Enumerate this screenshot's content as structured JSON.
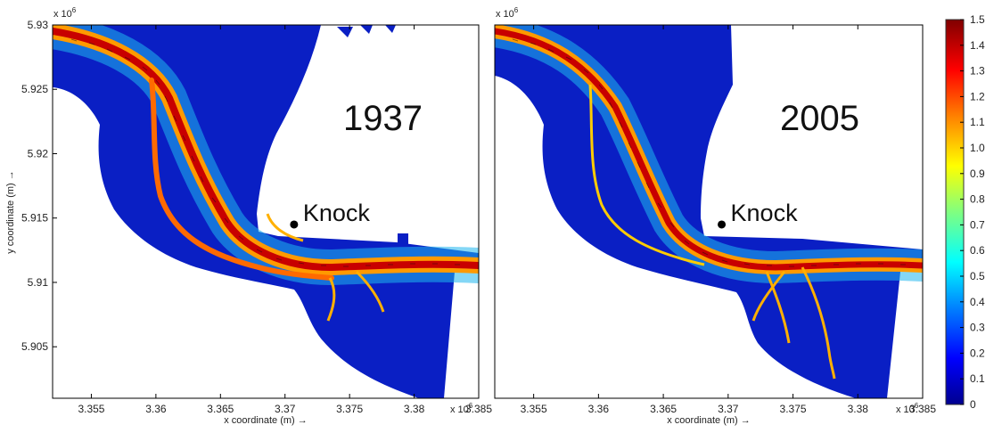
{
  "chart_data": [
    {
      "type": "heatmap",
      "title": "1937",
      "xlabel": "x coordinate (m) →",
      "ylabel": "y coordinate (m) →",
      "x_scale_label": "x 10",
      "x_scale_exp": "6",
      "y_scale_label": "x 10",
      "y_scale_exp": "6",
      "xlim": [
        3.352,
        3.385
      ],
      "ylim": [
        5.901,
        5.93
      ],
      "x_ticks": [
        3.355,
        3.36,
        3.365,
        3.37,
        3.375,
        3.38,
        3.385
      ],
      "x_tick_labels": [
        "3.355",
        "3.36",
        "3.365",
        "3.37",
        "3.375",
        "3.38",
        "3.385"
      ],
      "y_ticks": [
        5.905,
        5.91,
        5.915,
        5.92,
        5.925,
        5.93
      ],
      "y_tick_labels": [
        "5.905",
        "5.91",
        "5.915",
        "5.92",
        "5.925",
        "5.93"
      ],
      "annotation": {
        "text": "Knock",
        "x": 3.3707,
        "y": 5.9145
      },
      "channel": [
        [
          3.352,
          5.9296
        ],
        [
          3.357,
          5.9286
        ],
        [
          3.3615,
          5.9258
        ],
        [
          3.364,
          5.9222
        ],
        [
          3.3655,
          5.9185
        ],
        [
          3.3675,
          5.9148
        ],
        [
          3.371,
          5.912
        ],
        [
          3.376,
          5.9112
        ],
        [
          3.385,
          5.9116
        ]
      ]
    },
    {
      "type": "heatmap",
      "title": "2005",
      "xlabel": "x coordinate (m) →",
      "x_scale_label": "x 10",
      "x_scale_exp": "6",
      "y_scale_label": "x 10",
      "y_scale_exp": "6",
      "xlim": [
        3.352,
        3.385
      ],
      "ylim": [
        5.901,
        5.93
      ],
      "x_ticks": [
        3.355,
        3.36,
        3.365,
        3.37,
        3.375,
        3.38,
        3.385
      ],
      "x_tick_labels": [
        "3.355",
        "3.36",
        "3.365",
        "3.37",
        "3.375",
        "3.38",
        "3.385"
      ],
      "annotation": {
        "text": "Knock",
        "x": 3.3695,
        "y": 5.9145
      },
      "channel": [
        [
          3.352,
          5.9296
        ],
        [
          3.357,
          5.9286
        ],
        [
          3.3615,
          5.9258
        ],
        [
          3.364,
          5.9222
        ],
        [
          3.3658,
          5.918
        ],
        [
          3.367,
          5.9142
        ],
        [
          3.3705,
          5.9118
        ],
        [
          3.376,
          5.9112
        ],
        [
          3.385,
          5.9114
        ]
      ]
    }
  ],
  "colorbar": {
    "min": 0,
    "max": 1.5,
    "ticks": [
      1.5,
      1.4,
      1.3,
      1.2,
      1.1,
      1.0,
      0.9,
      0.8,
      0.7,
      0.6,
      0.5,
      0.4,
      0.3,
      0.2,
      0.1,
      0
    ],
    "tick_labels": [
      "1.5",
      "1.4",
      "1.3",
      "1.2",
      "1.1",
      "1.0",
      "0.9",
      "0.8",
      "0.7",
      "0.6",
      "0.5",
      "0.4",
      "0.3",
      "0.2",
      "0.1",
      "0"
    ],
    "colors": [
      "#00008f",
      "#0000ff",
      "#0080ff",
      "#00ffff",
      "#80ff80",
      "#ffff00",
      "#ff8000",
      "#ff0000",
      "#800000"
    ]
  },
  "colors": {
    "water_low": "#0a22c8",
    "water_deep": "#00008f",
    "channel_hot": "#d40000",
    "channel_warm": "#ff8c00",
    "channel_cool": "#33e6cc"
  }
}
